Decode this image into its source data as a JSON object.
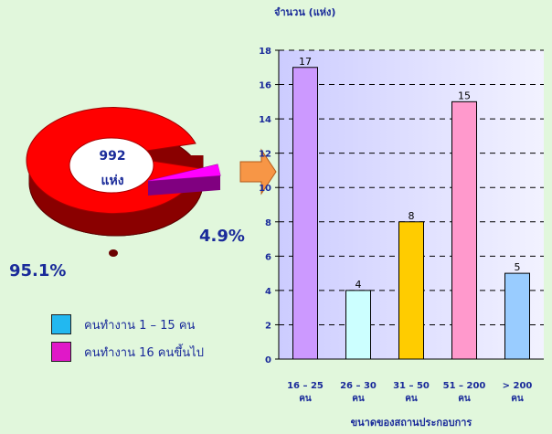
{
  "pie": {
    "center_number": "992",
    "center_unit": "แห่ง",
    "segments": [
      {
        "label": "คนทำงาน 1 – 15 คน",
        "percent_label": "95.1%",
        "value": 95.1,
        "legend_color": "#22b8f0",
        "slice_color": "#ff0000"
      },
      {
        "label": "คนทำงาน 16 คนขึ้นไป",
        "percent_label": "4.9%",
        "value": 4.9,
        "legend_color": "#e018c8",
        "slice_color": "#ff00ff"
      }
    ]
  },
  "arrow_icon": "right-arrow-icon",
  "chart_data": {
    "type": "bar",
    "ylabel": "จำนวน (แห่ง)",
    "xlabel": "ขนาดของสถานประกอบการ",
    "categories": [
      [
        "16 – 25",
        "คน"
      ],
      [
        "26 – 30",
        "คน"
      ],
      [
        "31 – 50",
        "คน"
      ],
      [
        "51 – 200",
        "คน"
      ],
      [
        "> 200",
        "คน"
      ]
    ],
    "values": [
      17,
      4,
      8,
      15,
      5
    ],
    "bar_colors": [
      "#cc99ff",
      "#ccffff",
      "#ffcc00",
      "#ff99cc",
      "#99ccff"
    ],
    "ylim": [
      0,
      18
    ],
    "yticks": [
      0,
      2,
      4,
      6,
      8,
      10,
      12,
      14,
      16,
      18
    ],
    "grid": true
  }
}
